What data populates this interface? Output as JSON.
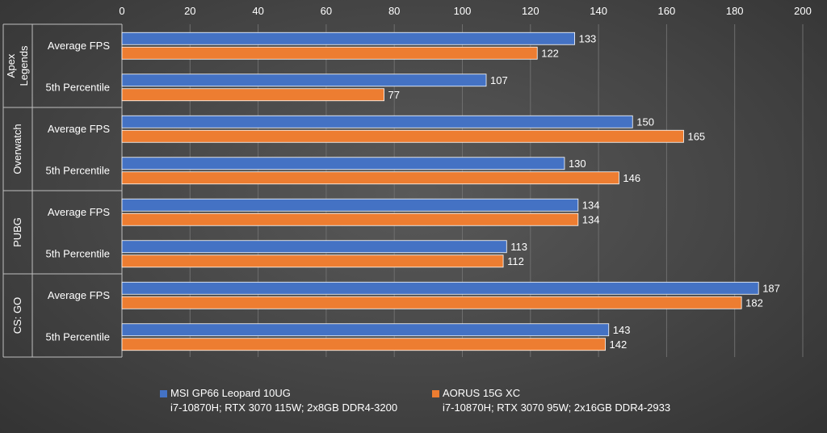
{
  "chart_data": {
    "type": "bar",
    "orientation": "horizontal",
    "title": "",
    "xlabel": "",
    "ylabel": "",
    "xlim": [
      0,
      200
    ],
    "x_ticks": [
      0,
      20,
      40,
      60,
      80,
      100,
      120,
      140,
      160,
      180,
      200
    ],
    "grid": true,
    "legend_position": "bottom",
    "groups": [
      {
        "name": "Apex Legends",
        "categories": [
          "Average FPS",
          "5th Percentile"
        ]
      },
      {
        "name": "Overwatch",
        "categories": [
          "Average FPS",
          "5th Percentile"
        ]
      },
      {
        "name": "PUBG",
        "categories": [
          "Average FPS",
          "5th Percentile"
        ]
      },
      {
        "name": "CS: GO",
        "categories": [
          "Average FPS",
          "5th Percentile"
        ]
      }
    ],
    "series": [
      {
        "name": "MSI GP66 Leopard 10UG",
        "subtitle": "i7-10870H; RTX 3070 115W; 2x8GB DDR4-3200",
        "color": "#4472c4",
        "values": [
          133,
          107,
          150,
          130,
          134,
          113,
          187,
          143
        ]
      },
      {
        "name": "AORUS 15G XC",
        "subtitle": "i7-10870H; RTX 3070 95W; 2x16GB DDR4-2933",
        "color": "#ed7d31",
        "values": [
          122,
          77,
          165,
          146,
          134,
          112,
          182,
          142
        ]
      }
    ]
  }
}
